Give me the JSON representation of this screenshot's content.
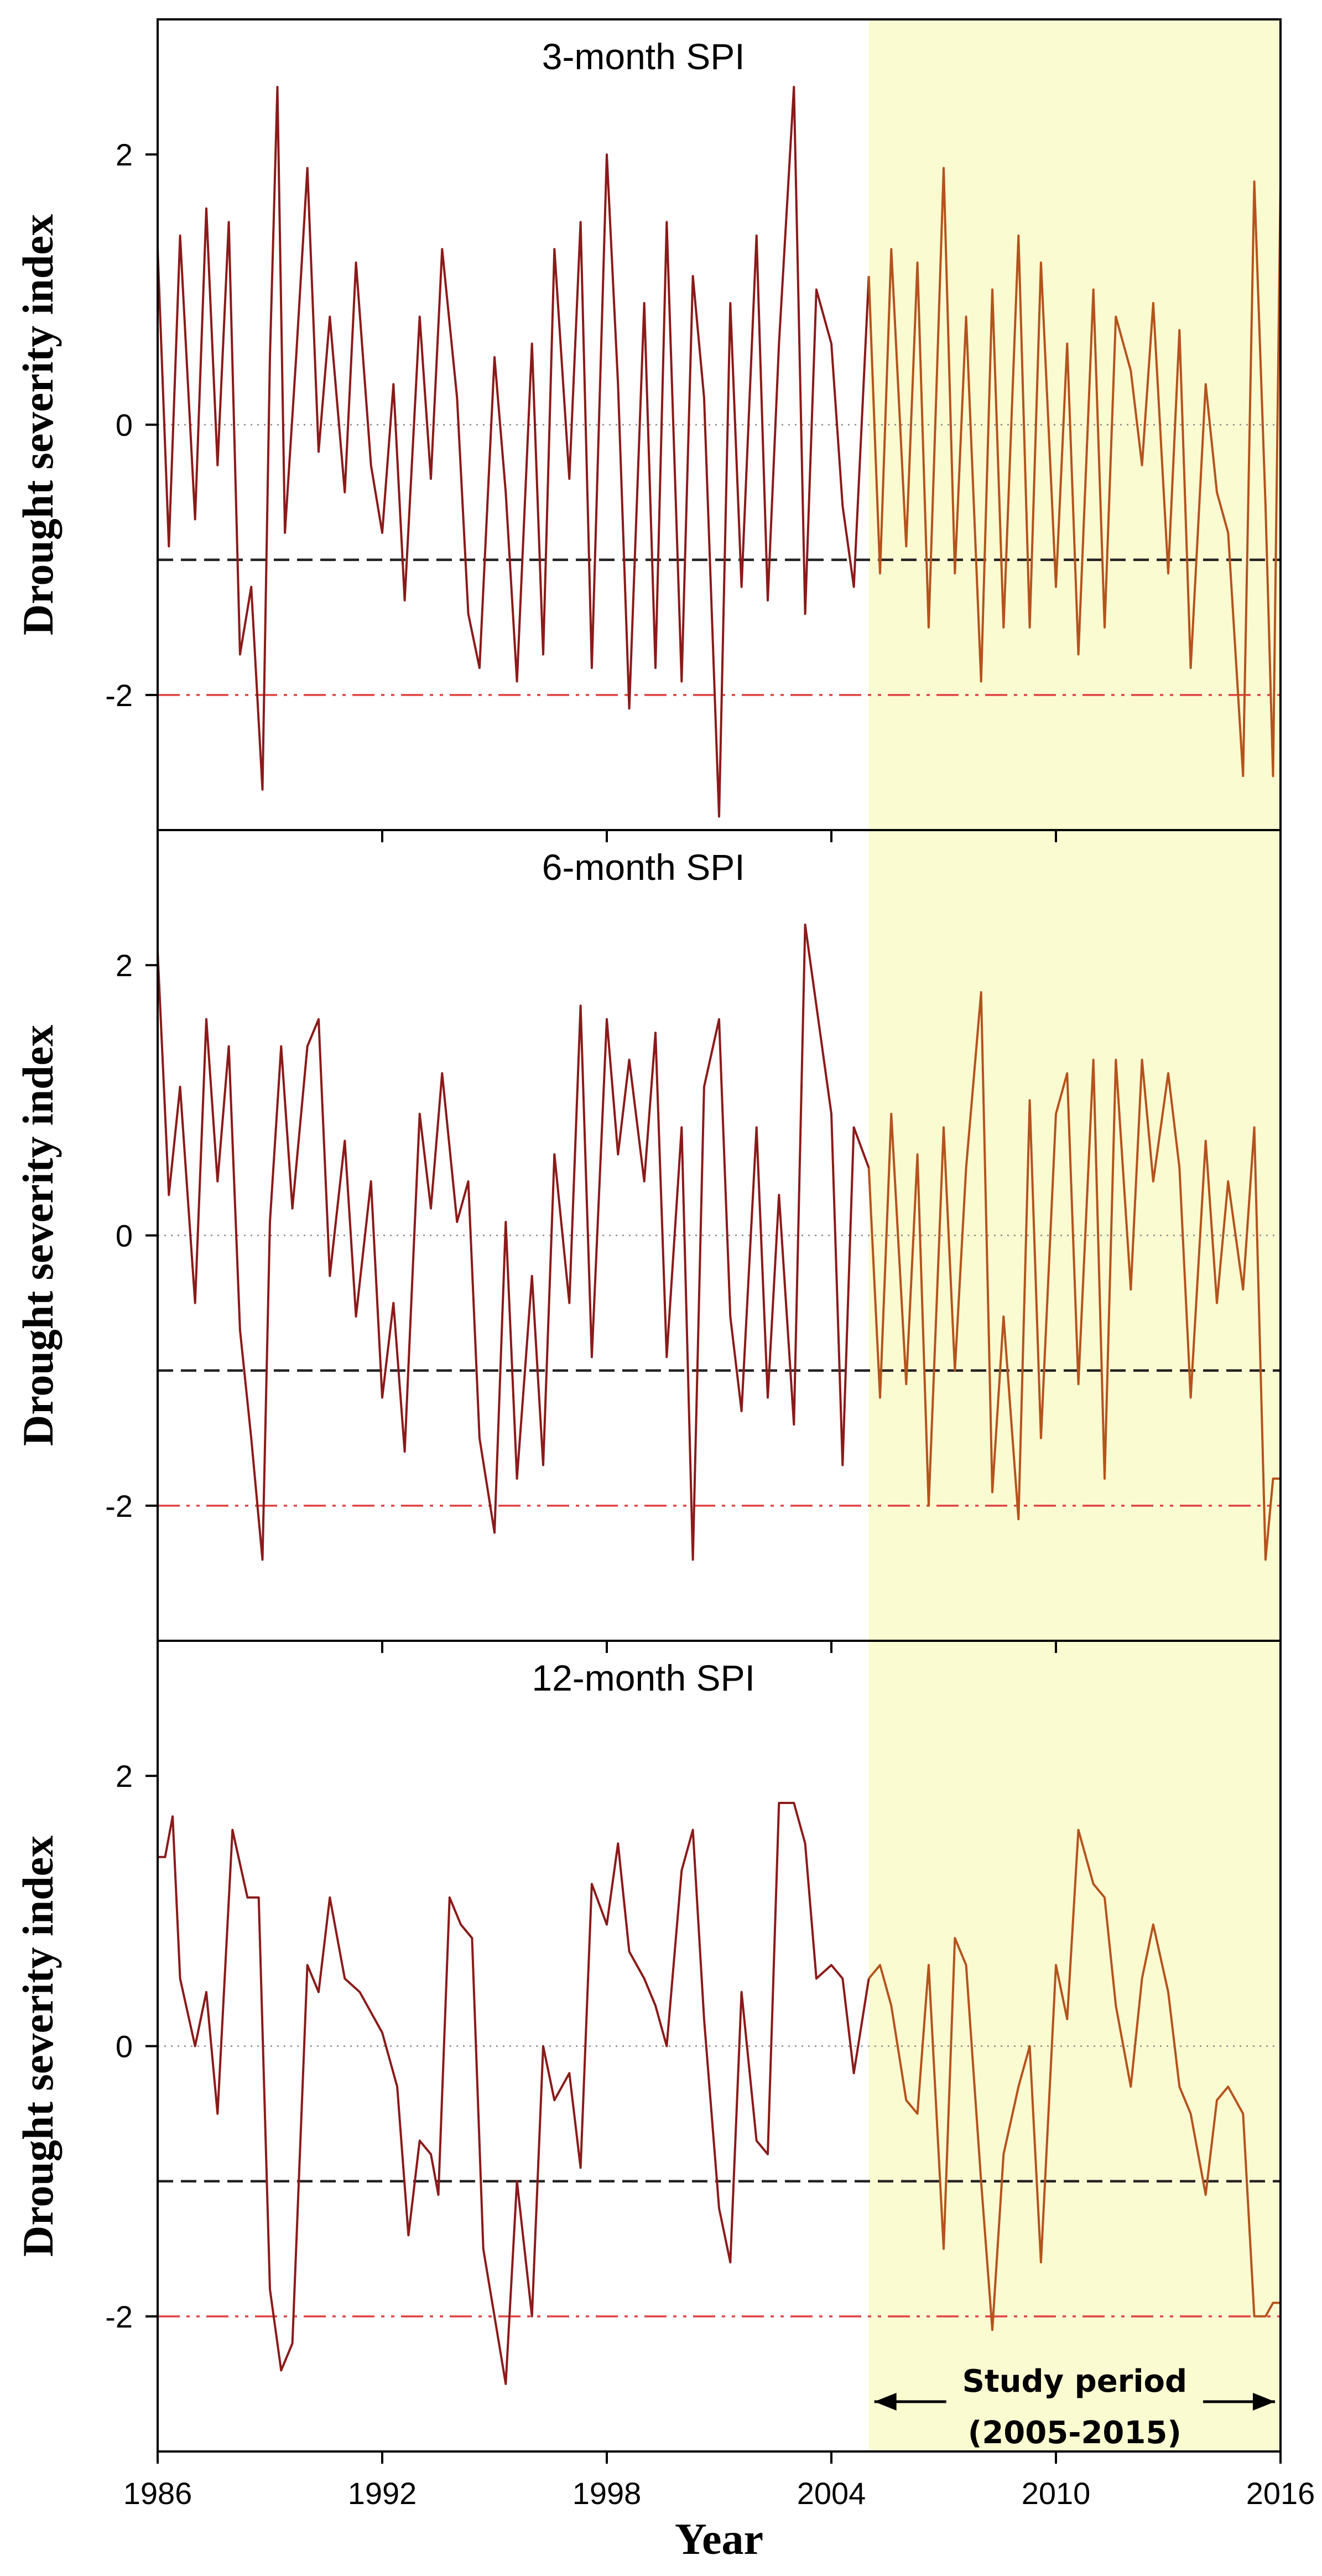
{
  "chart_data": [
    {
      "type": "line",
      "title": "3-month SPI",
      "xlabel": "Year",
      "ylabel": "Drought severity index",
      "xlim": [
        1986,
        2016
      ],
      "ylim": [
        -3,
        3
      ],
      "yticks": [
        2,
        0,
        -2
      ],
      "ytick_labels": [
        "2",
        "0",
        "-2"
      ],
      "reference_lines": [
        {
          "name": "normal",
          "value": 0,
          "style": "dotted",
          "color": "#888888"
        },
        {
          "name": "moderate-drought",
          "value": -1,
          "style": "dashed",
          "color": "#222222"
        },
        {
          "name": "extreme-drought",
          "value": -2,
          "style": "dash-dot-dot",
          "color": "#e04040"
        }
      ],
      "series": [
        {
          "name": "3-month SPI",
          "x": [
            1986.0,
            1986.3,
            1986.6,
            1987.0,
            1987.3,
            1987.6,
            1987.9,
            1988.2,
            1988.5,
            1988.8,
            1989.0,
            1989.2,
            1989.4,
            1989.7,
            1990.0,
            1990.3,
            1990.6,
            1991.0,
            1991.3,
            1991.7,
            1992.0,
            1992.3,
            1992.6,
            1993.0,
            1993.3,
            1993.6,
            1994.0,
            1994.3,
            1994.6,
            1995.0,
            1995.3,
            1995.6,
            1996.0,
            1996.3,
            1996.6,
            1997.0,
            1997.3,
            1997.6,
            1998.0,
            1998.3,
            1998.6,
            1999.0,
            1999.3,
            1999.6,
            2000.0,
            2000.3,
            2000.6,
            2001.0,
            2001.3,
            2001.6,
            2002.0,
            2002.3,
            2002.6,
            2003.0,
            2003.3,
            2003.6,
            2004.0,
            2004.3,
            2004.6,
            2005.0,
            2005.3,
            2005.6,
            2006.0,
            2006.3,
            2006.6,
            2007.0,
            2007.3,
            2007.6,
            2008.0,
            2008.3,
            2008.6,
            2009.0,
            2009.3,
            2009.6,
            2010.0,
            2010.3,
            2010.6,
            2011.0,
            2011.3,
            2011.6,
            2012.0,
            2012.3,
            2012.6,
            2013.0,
            2013.3,
            2013.6,
            2014.0,
            2014.3,
            2014.6,
            2015.0,
            2015.3,
            2015.6,
            2015.8,
            2016.0
          ],
          "values": [
            1.3,
            -0.9,
            1.4,
            -0.7,
            1.6,
            -0.3,
            1.5,
            -1.7,
            -1.2,
            -2.7,
            0.5,
            2.5,
            -0.8,
            0.5,
            1.9,
            -0.2,
            0.8,
            -0.5,
            1.2,
            -0.3,
            -0.8,
            0.3,
            -1.3,
            0.8,
            -0.4,
            1.3,
            0.2,
            -1.4,
            -1.8,
            0.5,
            -0.5,
            -1.9,
            0.6,
            -1.7,
            1.3,
            -0.4,
            1.5,
            -1.8,
            2.0,
            0.3,
            -2.1,
            0.9,
            -1.8,
            1.5,
            -1.9,
            1.1,
            0.2,
            -2.9,
            0.9,
            -1.2,
            1.4,
            -1.3,
            0.6,
            2.5,
            -1.4,
            1.0,
            0.6,
            -0.6,
            -1.2,
            1.1,
            -1.1,
            1.3,
            -0.9,
            1.2,
            -1.5,
            1.9,
            -1.1,
            0.8,
            -1.9,
            1.0,
            -1.5,
            1.4,
            -1.5,
            1.2,
            -1.2,
            0.6,
            -1.7,
            1.0,
            -1.5,
            0.8,
            0.4,
            -0.3,
            0.9,
            -1.1,
            0.7,
            -1.8,
            0.3,
            -0.5,
            -0.8,
            -2.6,
            1.8,
            -0.6,
            -2.6,
            1.8
          ]
        }
      ]
    },
    {
      "type": "line",
      "title": "6-month SPI",
      "xlabel": "Year",
      "ylabel": "Drought severity index",
      "xlim": [
        1986,
        2016
      ],
      "ylim": [
        -3,
        3
      ],
      "yticks": [
        2,
        0,
        -2
      ],
      "ytick_labels": [
        "2",
        "0",
        "-2"
      ],
      "reference_lines": [
        {
          "name": "normal",
          "value": 0,
          "style": "dotted",
          "color": "#888888"
        },
        {
          "name": "moderate-drought",
          "value": -1,
          "style": "dashed",
          "color": "#222222"
        },
        {
          "name": "extreme-drought",
          "value": -2,
          "style": "dash-dot-dot",
          "color": "#e04040"
        }
      ],
      "series": [
        {
          "name": "6-month SPI",
          "x": [
            1986.0,
            1986.3,
            1986.6,
            1987.0,
            1987.3,
            1987.6,
            1987.9,
            1988.2,
            1988.5,
            1988.8,
            1989.0,
            1989.3,
            1989.6,
            1990.0,
            1990.3,
            1990.6,
            1991.0,
            1991.3,
            1991.7,
            1992.0,
            1992.3,
            1992.6,
            1993.0,
            1993.3,
            1993.6,
            1994.0,
            1994.3,
            1994.6,
            1995.0,
            1995.3,
            1995.6,
            1996.0,
            1996.3,
            1996.6,
            1997.0,
            1997.3,
            1997.6,
            1998.0,
            1998.3,
            1998.6,
            1999.0,
            1999.3,
            1999.6,
            2000.0,
            2000.3,
            2000.6,
            2001.0,
            2001.3,
            2001.6,
            2002.0,
            2002.3,
            2002.6,
            2003.0,
            2003.3,
            2003.6,
            2004.0,
            2004.3,
            2004.6,
            2005.0,
            2005.3,
            2005.6,
            2006.0,
            2006.3,
            2006.6,
            2007.0,
            2007.3,
            2007.6,
            2008.0,
            2008.3,
            2008.6,
            2009.0,
            2009.3,
            2009.6,
            2010.0,
            2010.3,
            2010.6,
            2011.0,
            2011.3,
            2011.6,
            2012.0,
            2012.3,
            2012.6,
            2013.0,
            2013.3,
            2013.6,
            2014.0,
            2014.3,
            2014.6,
            2015.0,
            2015.3,
            2015.6,
            2015.8,
            2016.0
          ],
          "values": [
            2.1,
            0.3,
            1.1,
            -0.5,
            1.6,
            0.4,
            1.4,
            -0.7,
            -1.5,
            -2.4,
            0.1,
            1.4,
            0.2,
            1.4,
            1.6,
            -0.3,
            0.7,
            -0.6,
            0.4,
            -1.2,
            -0.5,
            -1.6,
            0.9,
            0.2,
            1.2,
            0.1,
            0.4,
            -1.5,
            -2.2,
            0.1,
            -1.8,
            -0.3,
            -1.7,
            0.6,
            -0.5,
            1.7,
            -0.9,
            1.6,
            0.6,
            1.3,
            0.4,
            1.5,
            -0.9,
            0.8,
            -2.4,
            1.1,
            1.6,
            -0.6,
            -1.3,
            0.8,
            -1.2,
            0.3,
            -1.4,
            2.3,
            1.7,
            0.9,
            -1.7,
            0.8,
            0.5,
            -1.2,
            0.9,
            -1.1,
            0.6,
            -2.0,
            0.8,
            -1.0,
            0.5,
            1.8,
            -1.9,
            -0.6,
            -2.1,
            1.0,
            -1.5,
            0.9,
            1.2,
            -1.1,
            1.3,
            -1.8,
            1.3,
            -0.4,
            1.3,
            0.4,
            1.2,
            0.5,
            -1.2,
            0.7,
            -0.5,
            0.4,
            -0.4,
            0.8,
            -2.4,
            -1.8,
            -1.8
          ]
        }
      ]
    },
    {
      "type": "line",
      "title": "12-month SPI",
      "xlabel": "Year",
      "ylabel": "Drought severity index",
      "xlim": [
        1986,
        2016
      ],
      "ylim": [
        -3,
        3
      ],
      "yticks": [
        2,
        0,
        -2
      ],
      "ytick_labels": [
        "2",
        "0",
        "-2"
      ],
      "xticks": [
        1986,
        1992,
        1998,
        2004,
        2010,
        2016
      ],
      "xtick_labels": [
        "1986",
        "1992",
        "1998",
        "2004",
        "2010",
        "2016"
      ],
      "reference_lines": [
        {
          "name": "normal",
          "value": 0,
          "style": "dotted",
          "color": "#888888"
        },
        {
          "name": "moderate-drought",
          "value": -1,
          "style": "dashed",
          "color": "#222222"
        },
        {
          "name": "extreme-drought",
          "value": -2,
          "style": "dash-dot-dot",
          "color": "#e04040"
        }
      ],
      "series": [
        {
          "name": "12-month SPI",
          "x": [
            1986.0,
            1986.2,
            1986.4,
            1986.6,
            1987.0,
            1987.3,
            1987.6,
            1988.0,
            1988.4,
            1988.7,
            1989.0,
            1989.3,
            1989.6,
            1990.0,
            1990.3,
            1990.6,
            1991.0,
            1991.4,
            1991.8,
            1992.0,
            1992.4,
            1992.7,
            1993.0,
            1993.3,
            1993.5,
            1993.8,
            1994.1,
            1994.4,
            1994.7,
            1995.0,
            1995.3,
            1995.6,
            1996.0,
            1996.3,
            1996.6,
            1997.0,
            1997.3,
            1997.6,
            1998.0,
            1998.3,
            1998.6,
            1999.0,
            1999.3,
            1999.6,
            2000.0,
            2000.3,
            2000.6,
            2001.0,
            2001.3,
            2001.6,
            2002.0,
            2002.3,
            2002.6,
            2003.0,
            2003.3,
            2003.6,
            2004.0,
            2004.3,
            2004.6,
            2005.0,
            2005.3,
            2005.6,
            2006.0,
            2006.3,
            2006.6,
            2007.0,
            2007.3,
            2007.6,
            2008.0,
            2008.3,
            2008.6,
            2009.0,
            2009.3,
            2009.6,
            2010.0,
            2010.3,
            2010.6,
            2011.0,
            2011.3,
            2011.6,
            2012.0,
            2012.3,
            2012.6,
            2013.0,
            2013.3,
            2013.6,
            2014.0,
            2014.3,
            2014.6,
            2015.0,
            2015.3,
            2015.6,
            2015.8,
            2016.0
          ],
          "values": [
            1.4,
            1.4,
            1.7,
            0.5,
            0.0,
            0.4,
            -0.5,
            1.6,
            1.1,
            1.1,
            -1.8,
            -2.4,
            -2.2,
            0.6,
            0.4,
            1.1,
            0.5,
            0.4,
            0.2,
            0.1,
            -0.3,
            -1.4,
            -0.7,
            -0.8,
            -1.1,
            1.1,
            0.9,
            0.8,
            -1.5,
            -2.0,
            -2.5,
            -1.0,
            -2.0,
            0.0,
            -0.4,
            -0.2,
            -0.9,
            1.2,
            0.9,
            1.5,
            0.7,
            0.5,
            0.3,
            0.0,
            1.3,
            1.6,
            0.2,
            -1.2,
            -1.6,
            0.4,
            -0.7,
            -0.8,
            1.8,
            1.8,
            1.5,
            0.5,
            0.6,
            0.5,
            -0.2,
            0.5,
            0.6,
            0.3,
            -0.4,
            -0.5,
            0.6,
            -1.5,
            0.8,
            0.6,
            -1.0,
            -2.1,
            -0.8,
            -0.3,
            0.0,
            -1.6,
            0.6,
            0.2,
            1.6,
            1.2,
            1.1,
            0.3,
            -0.3,
            0.5,
            0.9,
            0.4,
            -0.3,
            -0.5,
            -1.1,
            -0.4,
            -0.3,
            -0.5,
            -2.0,
            -2.0,
            -1.9,
            -1.9
          ]
        }
      ]
    }
  ],
  "study_period": {
    "start": 2005,
    "end": 2016,
    "label_line1": "Study period",
    "label_line2": "(2005-2015)",
    "shade_color": "#fbfbd2"
  },
  "colors": {
    "pre_study_line": "#8b1a1a",
    "study_line": "#b5531d",
    "axis": "#000000"
  },
  "axis_title_x": "Year",
  "axis_title_y": "Drought severity index"
}
